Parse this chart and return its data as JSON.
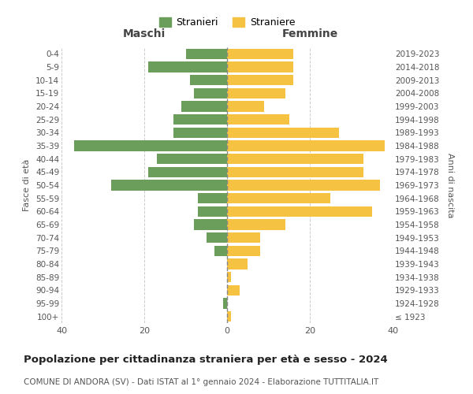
{
  "age_groups": [
    "100+",
    "95-99",
    "90-94",
    "85-89",
    "80-84",
    "75-79",
    "70-74",
    "65-69",
    "60-64",
    "55-59",
    "50-54",
    "45-49",
    "40-44",
    "35-39",
    "30-34",
    "25-29",
    "20-24",
    "15-19",
    "10-14",
    "5-9",
    "0-4"
  ],
  "birth_years": [
    "≤ 1923",
    "1924-1928",
    "1929-1933",
    "1934-1938",
    "1939-1943",
    "1944-1948",
    "1949-1953",
    "1954-1958",
    "1959-1963",
    "1964-1968",
    "1969-1973",
    "1974-1978",
    "1979-1983",
    "1984-1988",
    "1989-1993",
    "1994-1998",
    "1999-2003",
    "2004-2008",
    "2009-2013",
    "2014-2018",
    "2019-2023"
  ],
  "maschi": [
    0,
    1,
    0,
    0,
    0,
    3,
    5,
    8,
    7,
    7,
    28,
    19,
    17,
    37,
    13,
    13,
    11,
    8,
    9,
    19,
    10
  ],
  "femmine": [
    1,
    0,
    3,
    1,
    5,
    8,
    8,
    14,
    35,
    25,
    37,
    33,
    33,
    38,
    27,
    15,
    9,
    14,
    16,
    16,
    16
  ],
  "maschi_color": "#6a9e5a",
  "femmine_color": "#f5c242",
  "background_color": "#ffffff",
  "grid_color": "#cccccc",
  "title": "Popolazione per cittadinanza straniera per età e sesso - 2024",
  "subtitle": "COMUNE DI ANDORA (SV) - Dati ISTAT al 1° gennaio 2024 - Elaborazione TUTTITALIA.IT",
  "xlabel_left": "Maschi",
  "xlabel_right": "Femmine",
  "ylabel_left": "Fasce di età",
  "ylabel_right": "Anni di nascita",
  "legend_maschi": "Stranieri",
  "legend_femmine": "Straniere",
  "xlim": 40,
  "bar_height": 0.8
}
